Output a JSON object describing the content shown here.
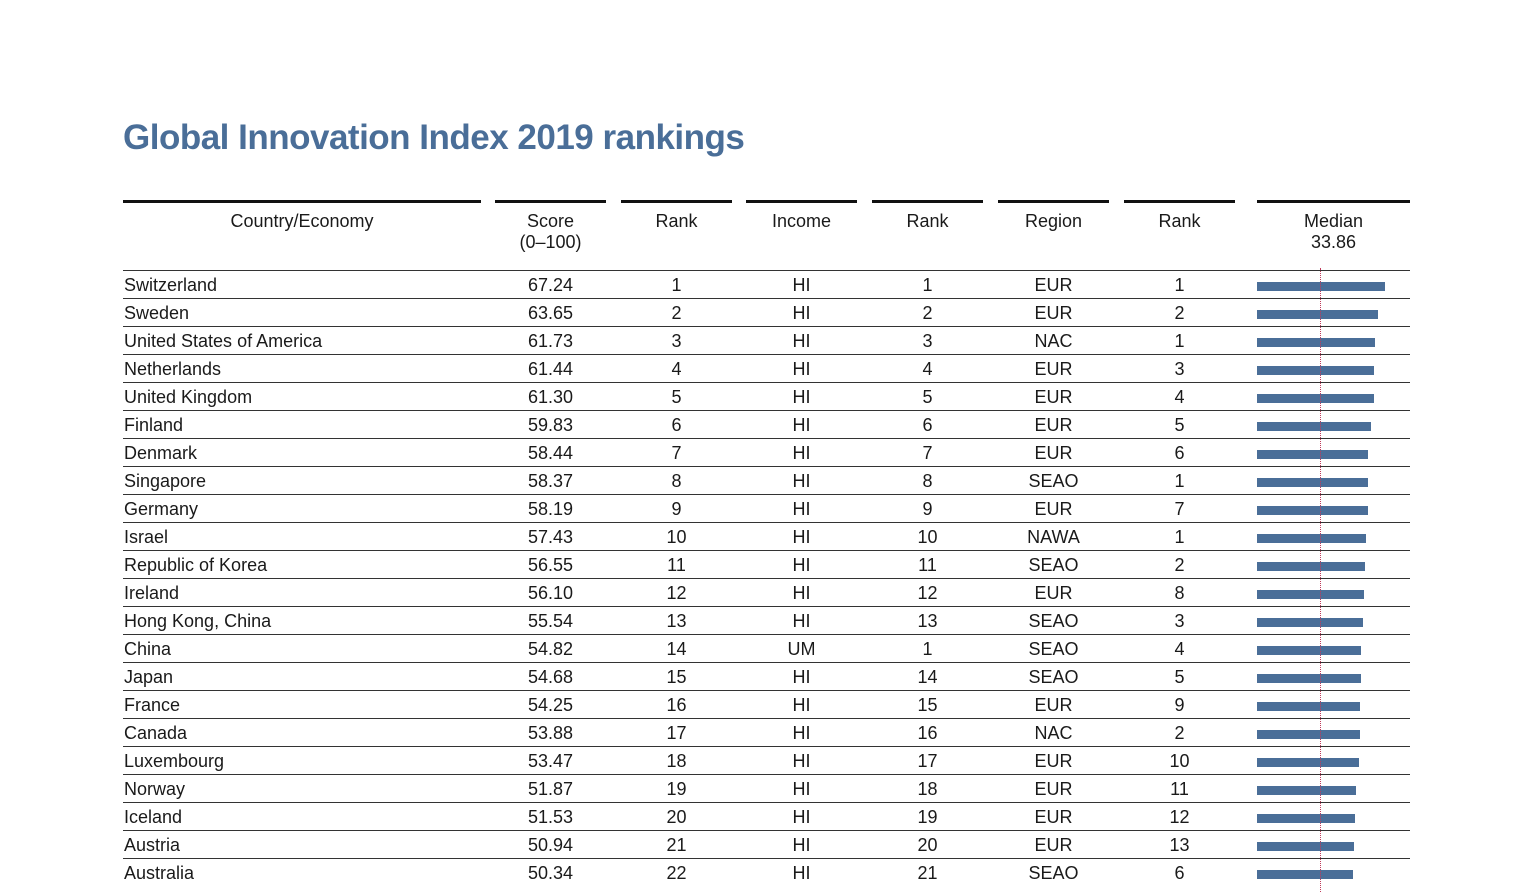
{
  "title": "Global Innovation Index 2019 rankings",
  "colors": {
    "title": "#4a6e98",
    "bar": "#4a6e98",
    "median_line": "#c0395a"
  },
  "headers": {
    "country": "Country/Economy",
    "score_line1": "Score",
    "score_line2": "(0–100)",
    "rank1": "Rank",
    "income": "Income",
    "rank2": "Rank",
    "region": "Region",
    "rank3": "Rank",
    "median_label": "Median",
    "median_value": "33.86"
  },
  "median": 33.86,
  "rows": [
    {
      "country": "Switzerland",
      "score": "67.24",
      "rank": "1",
      "income": "HI",
      "income_rank": "1",
      "region": "EUR",
      "region_rank": "1"
    },
    {
      "country": "Sweden",
      "score": "63.65",
      "rank": "2",
      "income": "HI",
      "income_rank": "2",
      "region": "EUR",
      "region_rank": "2"
    },
    {
      "country": "United States of America",
      "score": "61.73",
      "rank": "3",
      "income": "HI",
      "income_rank": "3",
      "region": "NAC",
      "region_rank": "1"
    },
    {
      "country": "Netherlands",
      "score": "61.44",
      "rank": "4",
      "income": "HI",
      "income_rank": "4",
      "region": "EUR",
      "region_rank": "3"
    },
    {
      "country": "United Kingdom",
      "score": "61.30",
      "rank": "5",
      "income": "HI",
      "income_rank": "5",
      "region": "EUR",
      "region_rank": "4"
    },
    {
      "country": "Finland",
      "score": "59.83",
      "rank": "6",
      "income": "HI",
      "income_rank": "6",
      "region": "EUR",
      "region_rank": "5"
    },
    {
      "country": "Denmark",
      "score": "58.44",
      "rank": "7",
      "income": "HI",
      "income_rank": "7",
      "region": "EUR",
      "region_rank": "6"
    },
    {
      "country": "Singapore",
      "score": "58.37",
      "rank": "8",
      "income": "HI",
      "income_rank": "8",
      "region": "SEAO",
      "region_rank": "1"
    },
    {
      "country": "Germany",
      "score": "58.19",
      "rank": "9",
      "income": "HI",
      "income_rank": "9",
      "region": "EUR",
      "region_rank": "7"
    },
    {
      "country": "Israel",
      "score": "57.43",
      "rank": "10",
      "income": "HI",
      "income_rank": "10",
      "region": "NAWA",
      "region_rank": "1"
    },
    {
      "country": "Republic of Korea",
      "score": "56.55",
      "rank": "11",
      "income": "HI",
      "income_rank": "11",
      "region": "SEAO",
      "region_rank": "2"
    },
    {
      "country": "Ireland",
      "score": "56.10",
      "rank": "12",
      "income": "HI",
      "income_rank": "12",
      "region": "EUR",
      "region_rank": "8"
    },
    {
      "country": "Hong Kong, China",
      "score": "55.54",
      "rank": "13",
      "income": "HI",
      "income_rank": "13",
      "region": "SEAO",
      "region_rank": "3"
    },
    {
      "country": "China",
      "score": "54.82",
      "rank": "14",
      "income": "UM",
      "income_rank": "1",
      "region": "SEAO",
      "region_rank": "4"
    },
    {
      "country": "Japan",
      "score": "54.68",
      "rank": "15",
      "income": "HI",
      "income_rank": "14",
      "region": "SEAO",
      "region_rank": "5"
    },
    {
      "country": "France",
      "score": "54.25",
      "rank": "16",
      "income": "HI",
      "income_rank": "15",
      "region": "EUR",
      "region_rank": "9"
    },
    {
      "country": "Canada",
      "score": "53.88",
      "rank": "17",
      "income": "HI",
      "income_rank": "16",
      "region": "NAC",
      "region_rank": "2"
    },
    {
      "country": "Luxembourg",
      "score": "53.47",
      "rank": "18",
      "income": "HI",
      "income_rank": "17",
      "region": "EUR",
      "region_rank": "10"
    },
    {
      "country": "Norway",
      "score": "51.87",
      "rank": "19",
      "income": "HI",
      "income_rank": "18",
      "region": "EUR",
      "region_rank": "11"
    },
    {
      "country": "Iceland",
      "score": "51.53",
      "rank": "20",
      "income": "HI",
      "income_rank": "19",
      "region": "EUR",
      "region_rank": "12"
    },
    {
      "country": "Austria",
      "score": "50.94",
      "rank": "21",
      "income": "HI",
      "income_rank": "20",
      "region": "EUR",
      "region_rank": "13"
    },
    {
      "country": "Australia",
      "score": "50.34",
      "rank": "22",
      "income": "HI",
      "income_rank": "21",
      "region": "SEAO",
      "region_rank": "6"
    }
  ]
}
